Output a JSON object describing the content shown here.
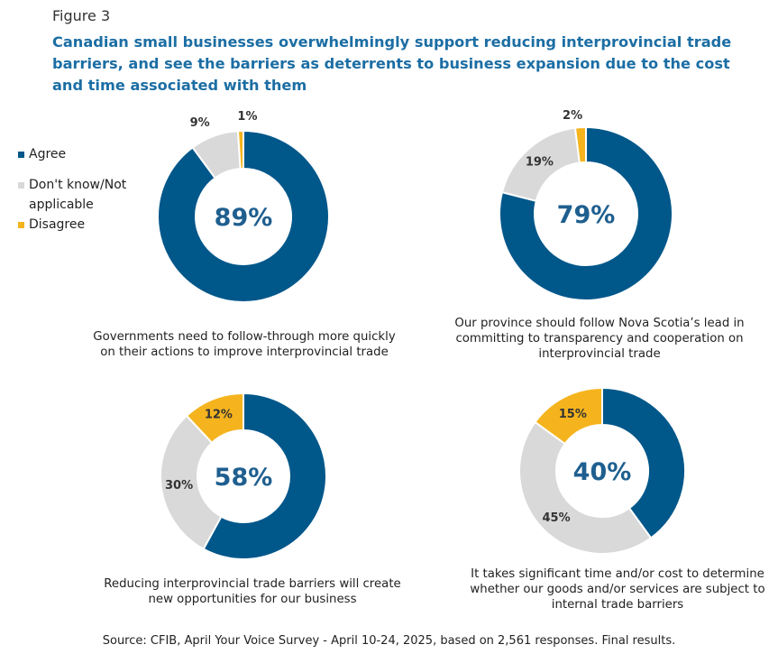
{
  "figure_label": "Figure 3",
  "title": "Canadian small businesses overwhelmingly support reducing interprovincial trade barriers, and see the barriers as deterrents to business expansion due to the cost and time associated with them",
  "legend": [
    {
      "label": "Agree",
      "color": "#00578a"
    },
    {
      "label": "Don't know/Not applicable",
      "color": "#d9d9d9"
    },
    {
      "label": "Disagree",
      "color": "#f5b41e"
    }
  ],
  "chart_data": [
    {
      "type": "pie",
      "categories": [
        "Agree",
        "Don't know/Not applicable",
        "Disagree"
      ],
      "values": [
        89,
        9,
        1
      ],
      "value_labels": [
        "89%",
        "9%",
        "1%"
      ],
      "center_label": "89%",
      "caption": "Governments need to follow-through more quickly on their actions to improve interprovincial trade"
    },
    {
      "type": "pie",
      "categories": [
        "Agree",
        "Don't know/Not applicable",
        "Disagree"
      ],
      "values": [
        79,
        19,
        2
      ],
      "value_labels": [
        "79%",
        "19%",
        "2%"
      ],
      "center_label": "79%",
      "caption": "Our province should follow Nova Scotia’s lead in committing to transparency and cooperation on interprovincial trade"
    },
    {
      "type": "pie",
      "categories": [
        "Agree",
        "Don't know/Not applicable",
        "Disagree"
      ],
      "values": [
        58,
        30,
        12
      ],
      "value_labels": [
        "58%",
        "30%",
        "12%"
      ],
      "center_label": "58%",
      "caption": "Reducing interprovincial trade barriers will create new opportunities for our business"
    },
    {
      "type": "pie",
      "categories": [
        "Agree",
        "Don't know/Not applicable",
        "Disagree"
      ],
      "values": [
        40,
        45,
        15
      ],
      "value_labels": [
        "40%",
        "45%",
        "15%"
      ],
      "center_label": "40%",
      "caption": "It takes significant time and/or cost to determine whether our goods and/or services are subject to internal trade barriers"
    }
  ],
  "source": "Source: CFIB, April Your Voice Survey - April 10-24, 2025, based on 2,561 responses. Final results."
}
